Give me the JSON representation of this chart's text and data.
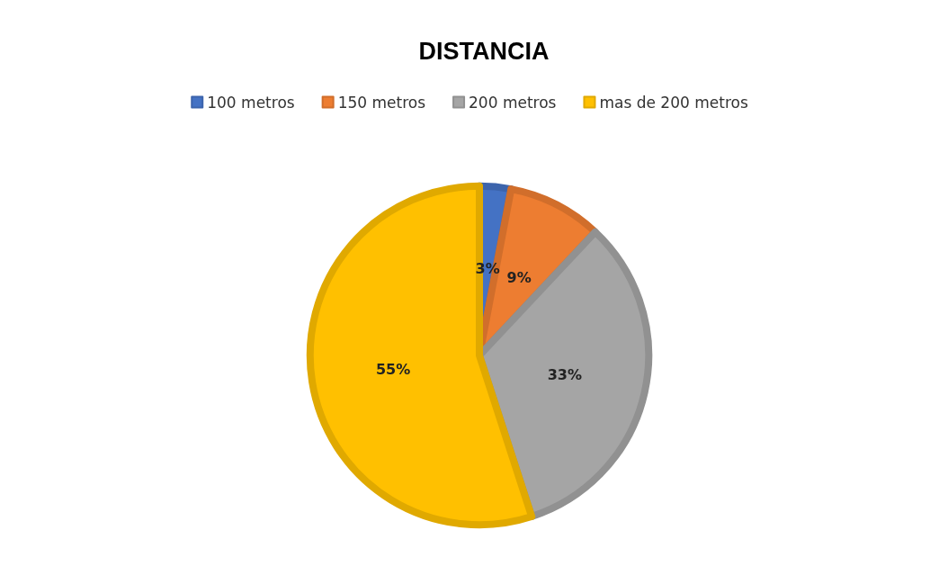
{
  "chart_data": {
    "type": "pie",
    "title": "DISTANCIA",
    "categories": [
      "100 metros",
      "150 metros",
      "200 metros",
      "mas de 200 metros"
    ],
    "values": [
      3,
      9,
      33,
      55
    ],
    "colors": [
      "#4472c4",
      "#ed7d31",
      "#a5a5a5",
      "#ffc000"
    ],
    "value_labels": [
      "3%",
      "9%",
      "33%",
      "55%"
    ],
    "legend": "top"
  }
}
